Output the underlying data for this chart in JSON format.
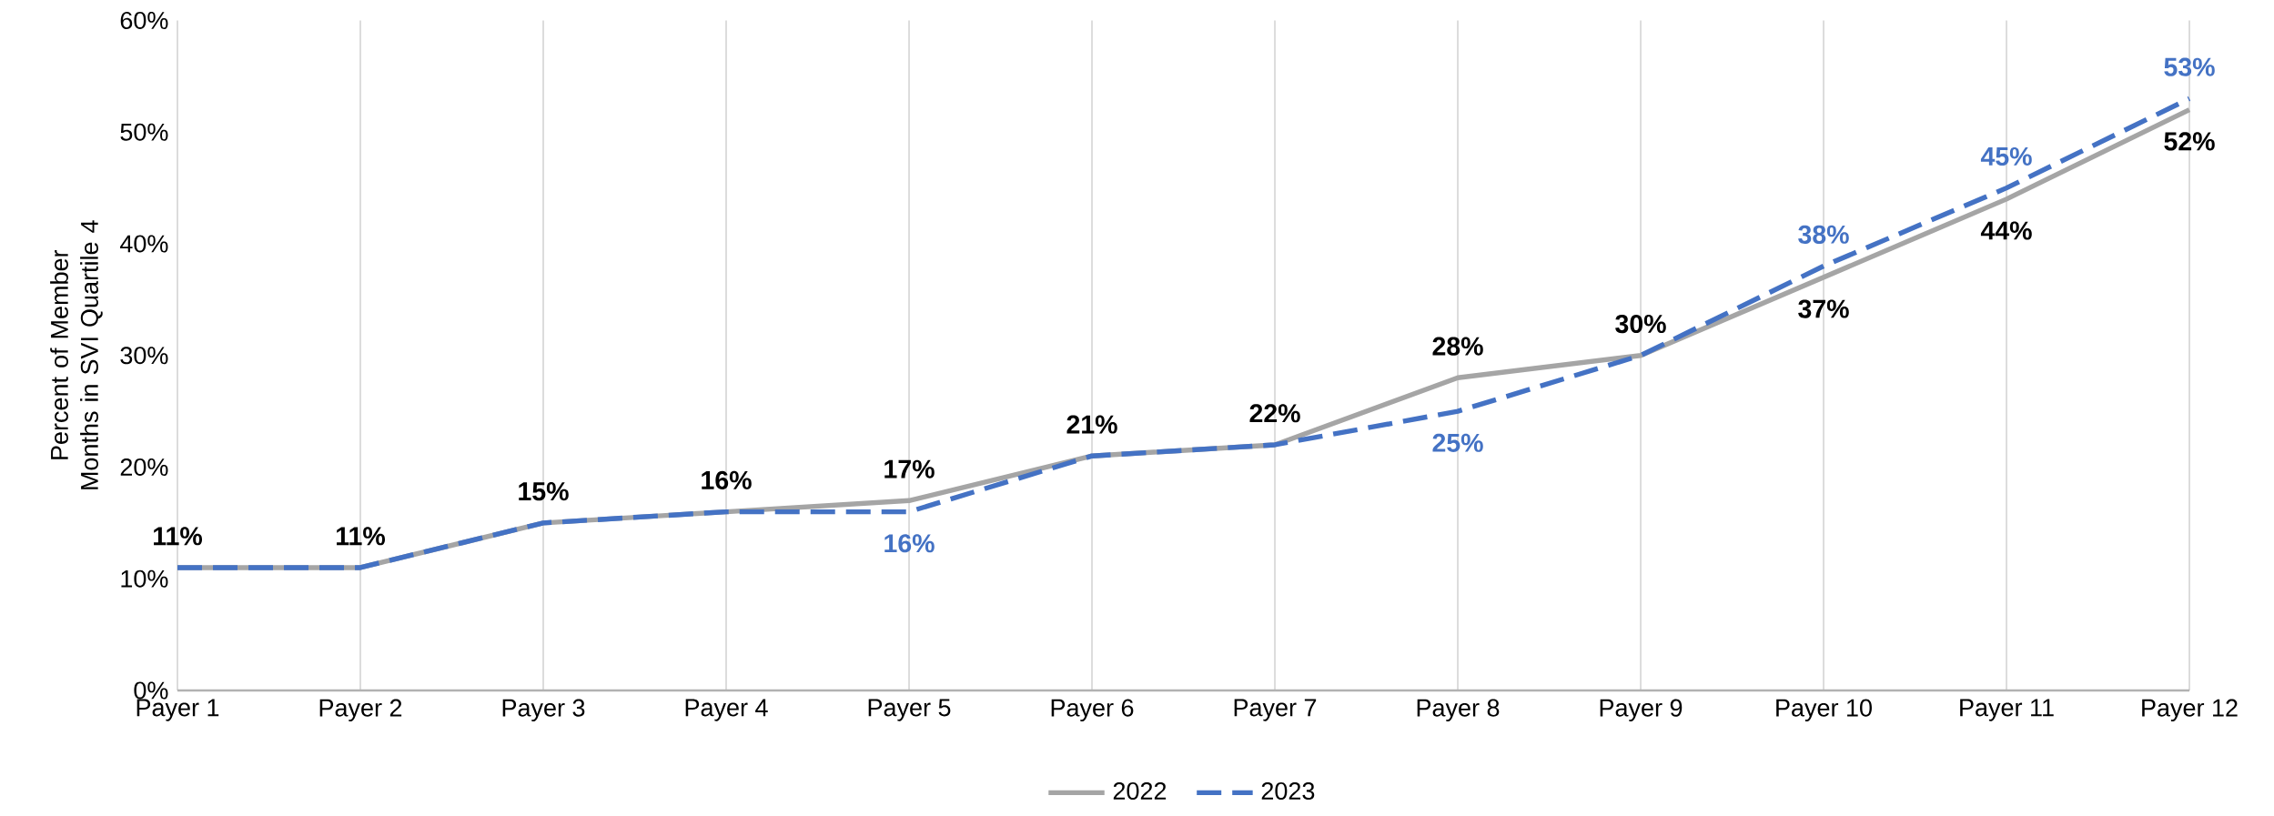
{
  "chart_data": {
    "type": "line",
    "ylabel": "Percent of Member Months in SVI Quartile 4",
    "categories": [
      "Payer 1",
      "Payer 2",
      "Payer 3",
      "Payer 4",
      "Payer 5",
      "Payer 6",
      "Payer 7",
      "Payer 8",
      "Payer 9",
      "Payer 10",
      "Payer 11",
      "Payer 12"
    ],
    "series": [
      {
        "name": "2022",
        "color": "#a5a5a5",
        "line_style": "solid",
        "values": [
          11,
          11,
          15,
          16,
          17,
          21,
          22,
          28,
          30,
          37,
          44,
          52
        ],
        "value_labels": [
          "11%",
          "11%",
          "15%",
          "16%",
          "17%",
          "21%",
          "22%",
          "28%",
          "30%",
          "37%",
          "44%",
          "52%"
        ]
      },
      {
        "name": "2023",
        "color": "#4472c4",
        "line_style": "dashed",
        "values": [
          11,
          11,
          15,
          16,
          16,
          21,
          22,
          25,
          30,
          38,
          45,
          53
        ],
        "value_labels": [
          null,
          null,
          null,
          null,
          "16%",
          null,
          null,
          "25%",
          null,
          "38%",
          "45%",
          "53%"
        ]
      }
    ],
    "ylim": [
      0,
      60
    ],
    "yticks": [
      {
        "value": 0,
        "label": "0%"
      },
      {
        "value": 10,
        "label": "10%"
      },
      {
        "value": 20,
        "label": "20%"
      },
      {
        "value": 30,
        "label": "30%"
      },
      {
        "value": 40,
        "label": "40%"
      },
      {
        "value": 50,
        "label": "50%"
      },
      {
        "value": 60,
        "label": "60%"
      }
    ],
    "grid": "x",
    "legend": "bottom",
    "marker": "none"
  }
}
